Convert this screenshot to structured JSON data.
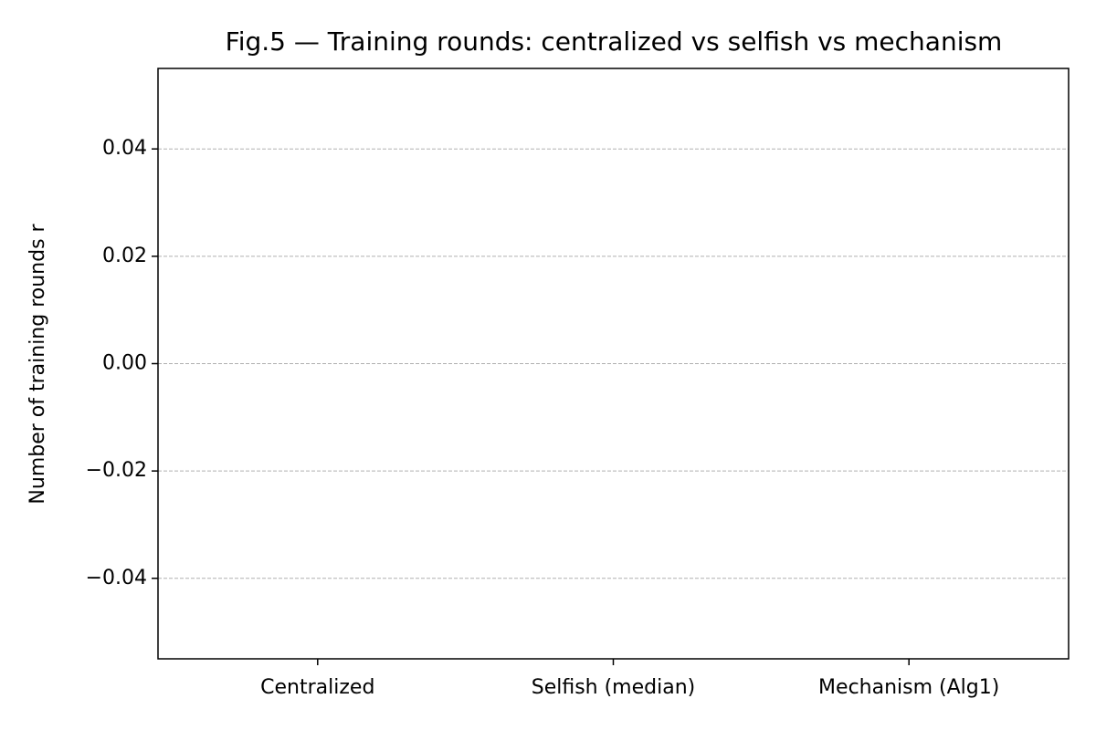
{
  "chart_data": {
    "type": "bar",
    "title": "Fig.5 — Training rounds: centralized vs selfish vs mechanism",
    "ylabel": "Number of training rounds r",
    "categories": [
      "Centralized",
      "Selfish (median)",
      "Mechanism (Alg1)"
    ],
    "values": [
      0,
      0,
      0
    ],
    "ylim": [
      -0.055,
      0.055
    ],
    "yticks": [
      {
        "value": -0.04,
        "label": "−0.04"
      },
      {
        "value": -0.02,
        "label": "−0.02"
      },
      {
        "value": 0,
        "label": "0.00"
      },
      0.02,
      0.04
    ],
    "grid": true
  }
}
